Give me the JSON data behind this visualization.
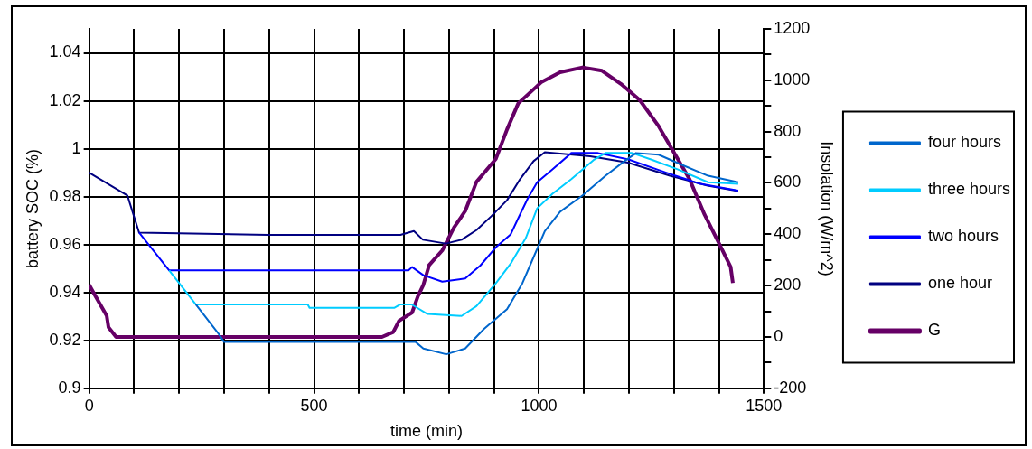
{
  "chart_data": {
    "type": "line",
    "xlabel": "time (min)",
    "ylabel": "battery SOC (%)",
    "y2label": "Insolation (W/m^2)",
    "xlim": [
      0,
      1500
    ],
    "xticks": [
      0,
      {
        "value": 100,
        "label": null
      },
      {
        "value": 200,
        "label": null
      },
      {
        "value": 300,
        "label": null
      },
      {
        "value": 400,
        "label": null
      },
      500,
      {
        "value": 600,
        "label": null
      },
      {
        "value": 700,
        "label": null
      },
      {
        "value": 800,
        "label": null
      },
      {
        "value": 900,
        "label": null
      },
      1000,
      {
        "value": 1100,
        "label": null
      },
      {
        "value": 1200,
        "label": null
      },
      {
        "value": 1300,
        "label": null
      },
      {
        "value": 1400,
        "label": null
      },
      1500
    ],
    "ylim": [
      0.9,
      1.05
    ],
    "yticks": [
      0.9,
      0.92,
      0.94,
      0.96,
      0.98,
      1,
      1.02,
      1.04
    ],
    "y2lim": [
      -200,
      1200
    ],
    "y2ticks": [
      -200,
      {
        "value": -100,
        "label": null
      },
      0,
      {
        "value": 100,
        "label": null
      },
      200,
      {
        "value": 300,
        "label": null
      },
      400,
      {
        "value": 500,
        "label": null
      },
      600,
      {
        "value": 700,
        "label": null
      },
      800,
      {
        "value": 900,
        "label": null
      },
      1000,
      {
        "value": 1100,
        "label": null
      },
      1200
    ],
    "grid": true,
    "legend": "right",
    "marker": "none",
    "series": [
      {
        "name": "four hours",
        "color": "#0066cc",
        "x": [
          237,
          288,
          300,
          726,
          743,
          794,
          836,
          878,
          929,
          963,
          988,
          1013,
          1047,
          1097,
          1148,
          1190,
          1216,
          1266,
          1325,
          1376,
          1443
        ],
        "values": [
          0.935,
          0.9227,
          0.9193,
          0.9193,
          0.9166,
          0.9142,
          0.9166,
          0.9248,
          0.933,
          0.9438,
          0.9547,
          0.9656,
          0.9737,
          0.9805,
          0.9887,
          0.9948,
          0.9982,
          0.9975,
          0.9927,
          0.9887,
          0.986
        ]
      },
      {
        "name": "three hours",
        "color": "#00ccff",
        "x": [
          178,
          237,
          486,
          490,
          679,
          692,
          717,
          752,
          828,
          861,
          904,
          937,
          971,
          996,
          1030,
          1072,
          1123,
          1148,
          1207,
          1249,
          1308,
          1376,
          1443
        ],
        "values": [
          0.9492,
          0.935,
          0.935,
          0.9336,
          0.9336,
          0.935,
          0.935,
          0.931,
          0.9302,
          0.9343,
          0.9438,
          0.952,
          0.9628,
          0.9751,
          0.9812,
          0.9873,
          0.9955,
          0.9982,
          0.9982,
          0.9955,
          0.9914,
          0.986,
          0.9853
        ]
      },
      {
        "name": "two hours",
        "color": "#0000ff",
        "x": [
          111,
          178,
          710,
          718,
          743,
          785,
          836,
          870,
          904,
          937,
          954,
          975,
          996,
          1030,
          1072,
          1131,
          1199,
          1283,
          1359,
          1443
        ],
        "values": [
          0.965,
          0.9492,
          0.9492,
          0.9506,
          0.9472,
          0.9445,
          0.9458,
          0.9513,
          0.9588,
          0.9642,
          0.971,
          0.9792,
          0.986,
          0.9914,
          0.9982,
          0.9982,
          0.9955,
          0.99,
          0.9853,
          0.9825
        ]
      },
      {
        "name": "one hour",
        "color": "#000080",
        "x": [
          0,
          85,
          111,
          398,
          692,
          722,
          742,
          793,
          828,
          861,
          894,
          929,
          958,
          988,
          1013,
          1114,
          1198,
          1291,
          1375,
          1443
        ],
        "values": [
          0.99,
          0.9805,
          0.965,
          0.964,
          0.964,
          0.9656,
          0.962,
          0.9604,
          0.962,
          0.966,
          0.9718,
          0.9785,
          0.9873,
          0.9948,
          0.9985,
          0.9968,
          0.9942,
          0.9887,
          0.9846,
          0.9823
        ]
      },
      {
        "name": "G",
        "color": "#660066",
        "axis": "y2",
        "x": [
          0,
          14,
          39,
          43,
          60,
          651,
          676,
          689,
          718,
          731,
          743,
          756,
          785,
          811,
          836,
          861,
          904,
          929,
          954,
          1005,
          1047,
          1097,
          1140,
          1182,
          1224,
          1266,
          1300,
          1334,
          1368,
          1401,
          1426,
          1431
        ],
        "values": [
          203,
          159,
          83,
          38,
          0,
          0,
          19,
          63,
          95,
          159,
          203,
          280,
          337,
          426,
          490,
          604,
          693,
          808,
          910,
          992,
          1031,
          1050,
          1037,
          986,
          923,
          821,
          719,
          617,
          477,
          362,
          273,
          210
        ]
      }
    ]
  }
}
